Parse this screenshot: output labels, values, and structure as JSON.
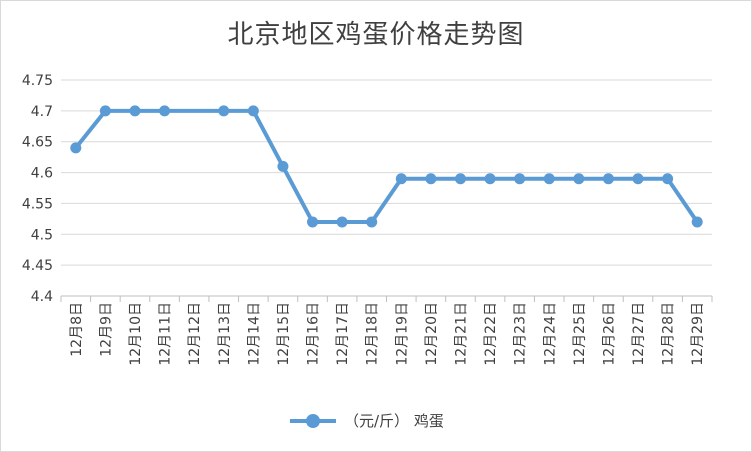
{
  "chart_data": {
    "type": "line",
    "title": "北京地区鸡蛋价格走势图",
    "xlabel": "",
    "ylabel": "",
    "categories": [
      "12月8日",
      "12月9日",
      "12月10日",
      "12月11日",
      "12月12日",
      "12月13日",
      "12月14日",
      "12月15日",
      "12月16日",
      "12月17日",
      "12月18日",
      "12月19日",
      "12月20日",
      "12月21日",
      "12月22日",
      "12月23日",
      "12月24日",
      "12月25日",
      "12月26日",
      "12月27日",
      "12月28日",
      "12月29日"
    ],
    "series": [
      {
        "name": "（元/斤） 鸡蛋",
        "color": "#5b9bd5",
        "values": [
          4.64,
          4.7,
          4.7,
          4.7,
          null,
          4.7,
          4.7,
          4.61,
          4.52,
          4.52,
          4.52,
          4.59,
          4.59,
          4.59,
          4.59,
          4.59,
          4.59,
          4.59,
          4.59,
          4.59,
          4.59,
          4.52
        ]
      }
    ],
    "ylim": [
      4.4,
      4.75
    ],
    "yticks": [
      "4.4",
      "4.45",
      "4.5",
      "4.55",
      "4.6",
      "4.65",
      "4.7",
      "4.75"
    ],
    "grid": true,
    "legend": "bottom"
  }
}
